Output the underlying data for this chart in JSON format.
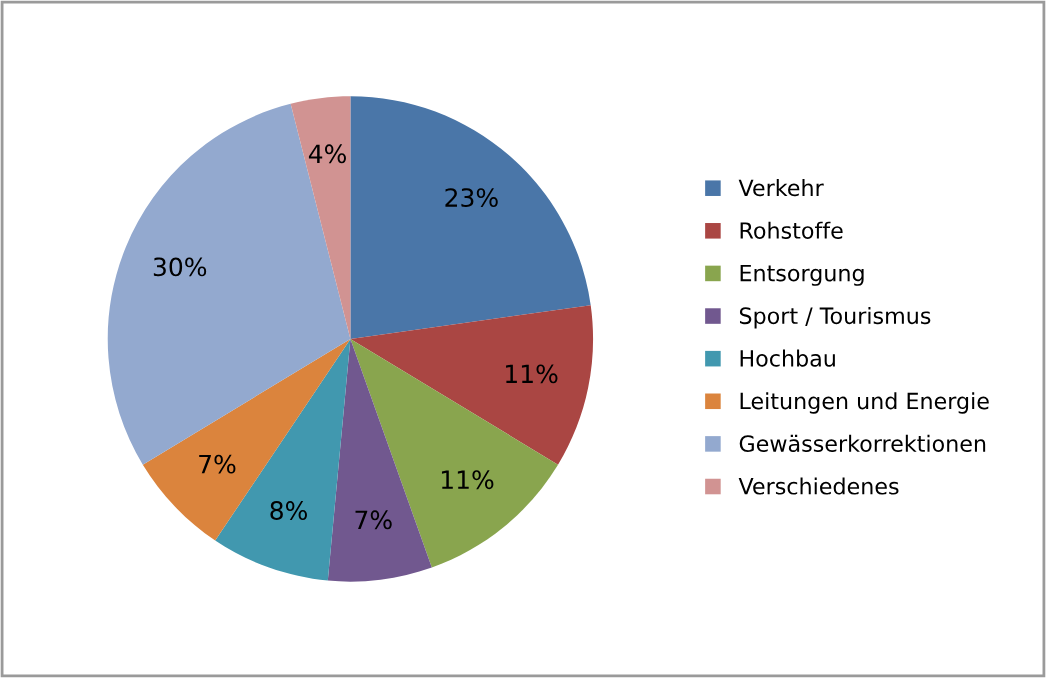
{
  "chart_data": {
    "type": "pie",
    "categories": [
      "Verkehr",
      "Rohstoffe",
      "Entsorgung",
      "Sport / Tourismus",
      "Hochbau",
      "Leitungen und Energie",
      "Gewässerkorrektionen",
      "Verschiedenes"
    ],
    "values": [
      23,
      11,
      11,
      7,
      8,
      7,
      30,
      4
    ],
    "value_labels": [
      "23%",
      "11%",
      "11%",
      "7%",
      "8%",
      "7%",
      "30%",
      "4%"
    ],
    "colors": [
      "#4a76a8",
      "#aa4643",
      "#89a54e",
      "#71588f",
      "#4198af",
      "#db843d",
      "#93a9cf",
      "#d19392"
    ],
    "legend": "right"
  }
}
